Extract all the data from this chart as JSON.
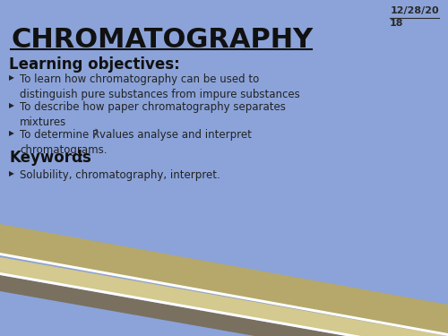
{
  "bg_color": "#8ba3d9",
  "title": "CHROMATOGRAPHY",
  "title_color": "#111111",
  "date_line1": "12/28/20",
  "date_line2": "18",
  "date_color": "#2a2a2a",
  "section_heading": "Learning objectives:",
  "section_heading_color": "#111111",
  "bullet_points": [
    "To learn how chromatography can be used to\ndistinguish pure substances from impure substances",
    "To describe how paper chromatography separates\nmixtures",
    "To determine ℟values analyse and interpret\nchromatograms."
  ],
  "keywords_label": "Keywords",
  "keywords_colon": ":",
  "keywords_text": "Solubility, chromatography, interpret.",
  "bullet_color": "#222222",
  "keywords_color": "#111111",
  "strip1_color": "#b5a86a",
  "strip2_color": "#d4c98e",
  "strip3_color": "#7a7060",
  "white_line": "#ffffff"
}
